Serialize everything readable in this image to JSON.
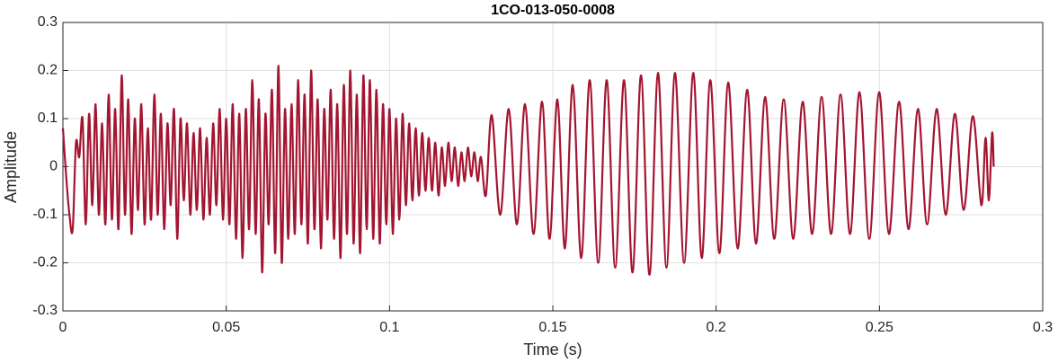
{
  "chart_data": {
    "type": "line",
    "title": "1CO-013-050-0008",
    "xlabel": "Time (s)",
    "ylabel": "Amplitude",
    "color": "#a31530",
    "grid": true,
    "xlim": [
      0,
      0.3
    ],
    "ylim": [
      -0.3,
      0.3
    ],
    "xticks": [
      0,
      0.05,
      0.1,
      0.15,
      0.2,
      0.25,
      0.3
    ],
    "yticks": [
      -0.3,
      -0.2,
      -0.1,
      0,
      0.1,
      0.2,
      0.3
    ],
    "x": [
      0,
      0.001,
      0.002,
      0.003,
      0.004,
      0.005,
      0.006,
      0.007,
      0.008,
      0.009,
      0.01,
      0.011,
      0.012,
      0.013,
      0.014,
      0.015,
      0.016,
      0.017,
      0.018,
      0.019,
      0.02,
      0.021,
      0.022,
      0.023,
      0.024,
      0.025,
      0.026,
      0.027,
      0.028,
      0.029,
      0.03,
      0.031,
      0.032,
      0.033,
      0.034,
      0.035,
      0.036,
      0.037,
      0.038,
      0.039,
      0.04,
      0.041,
      0.042,
      0.043,
      0.044,
      0.045,
      0.046,
      0.047,
      0.048,
      0.049,
      0.05,
      0.051,
      0.052,
      0.053,
      0.054,
      0.055,
      0.056,
      0.057,
      0.058,
      0.059,
      0.06,
      0.061,
      0.062,
      0.063,
      0.064,
      0.065,
      0.066,
      0.067,
      0.068,
      0.069,
      0.07,
      0.071,
      0.072,
      0.073,
      0.074,
      0.075,
      0.076,
      0.077,
      0.078,
      0.079,
      0.08,
      0.081,
      0.082,
      0.083,
      0.084,
      0.085,
      0.086,
      0.087,
      0.088,
      0.089,
      0.09,
      0.091,
      0.092,
      0.093,
      0.094,
      0.095,
      0.096,
      0.097,
      0.098,
      0.099,
      0.1,
      0.101,
      0.102,
      0.103,
      0.104,
      0.105,
      0.106,
      0.107,
      0.108,
      0.109,
      0.11,
      0.111,
      0.112,
      0.113,
      0.114,
      0.115,
      0.116,
      0.117,
      0.118,
      0.119,
      0.12,
      0.121,
      0.122,
      0.123,
      0.124,
      0.125,
      0.126,
      0.127,
      0.128,
      0.1295,
      0.1313,
      0.1339,
      0.1365,
      0.139,
      0.1415,
      0.1441,
      0.1467,
      0.149,
      0.1514,
      0.1537,
      0.1561,
      0.1587,
      0.1613,
      0.1639,
      0.1665,
      0.1691,
      0.1718,
      0.1744,
      0.177,
      0.1796,
      0.1822,
      0.1848,
      0.1874,
      0.1902,
      0.193,
      0.1956,
      0.1982,
      0.201,
      0.2037,
      0.2066,
      0.2095,
      0.2122,
      0.215,
      0.2178,
      0.2207,
      0.2236,
      0.2265,
      0.2294,
      0.2323,
      0.2352,
      0.2381,
      0.241,
      0.2439,
      0.2469,
      0.2499,
      0.2529,
      0.256,
      0.2589,
      0.2618,
      0.2646,
      0.2675,
      0.2703,
      0.2731,
      0.2758,
      0.2786,
      0.2812,
      0.2825,
      0.2835,
      0.2845,
      0.285
    ],
    "values": [
      0.08,
      -0.02,
      -0.1,
      -0.13,
      0.05,
      0.02,
      0.1,
      -0.12,
      0.11,
      -0.08,
      0.13,
      -0.1,
      0.09,
      -0.12,
      0.15,
      -0.11,
      0.12,
      -0.13,
      0.19,
      -0.1,
      0.14,
      -0.14,
      0.1,
      -0.09,
      0.13,
      -0.12,
      0.08,
      -0.11,
      0.15,
      -0.1,
      0.11,
      -0.13,
      0.09,
      -0.08,
      0.12,
      -0.15,
      0.1,
      -0.07,
      0.09,
      -0.1,
      0.07,
      -0.09,
      0.08,
      -0.11,
      0.06,
      -0.1,
      0.09,
      -0.08,
      0.12,
      -0.11,
      0.1,
      -0.12,
      0.13,
      -0.15,
      0.11,
      -0.19,
      0.12,
      -0.13,
      0.18,
      -0.14,
      0.14,
      -0.22,
      0.11,
      -0.12,
      0.16,
      -0.18,
      0.21,
      -0.2,
      0.12,
      -0.15,
      0.13,
      -0.14,
      0.18,
      -0.12,
      0.15,
      -0.16,
      0.2,
      -0.13,
      0.14,
      -0.17,
      0.12,
      -0.11,
      0.16,
      -0.15,
      0.13,
      -0.19,
      0.17,
      -0.14,
      0.2,
      -0.16,
      0.15,
      -0.18,
      0.19,
      -0.13,
      0.18,
      -0.15,
      0.16,
      -0.16,
      0.13,
      -0.12,
      0.12,
      -0.14,
      0.1,
      -0.11,
      0.11,
      -0.08,
      0.09,
      -0.07,
      0.08,
      -0.06,
      0.07,
      -0.05,
      0.06,
      -0.05,
      0.05,
      -0.06,
      0.04,
      -0.04,
      0.05,
      -0.03,
      0.04,
      -0.04,
      0.03,
      -0.03,
      0.04,
      -0.02,
      0.03,
      -0.03,
      0.02,
      -0.06,
      0.107,
      -0.1,
      0.12,
      -0.12,
      0.13,
      -0.14,
      0.135,
      -0.15,
      0.14,
      -0.17,
      0.17,
      -0.19,
      0.18,
      -0.2,
      0.18,
      -0.21,
      0.18,
      -0.22,
      0.19,
      -0.225,
      0.195,
      -0.21,
      0.195,
      -0.2,
      0.195,
      -0.19,
      0.18,
      -0.18,
      0.175,
      -0.17,
      0.16,
      -0.16,
      0.145,
      -0.15,
      0.14,
      -0.15,
      0.135,
      -0.14,
      0.145,
      -0.14,
      0.15,
      -0.14,
      0.155,
      -0.15,
      0.155,
      -0.14,
      0.135,
      -0.13,
      0.12,
      -0.12,
      0.12,
      -0.1,
      0.11,
      -0.09,
      0.105,
      -0.08,
      0.06,
      -0.07,
      0.07,
      0
    ]
  }
}
